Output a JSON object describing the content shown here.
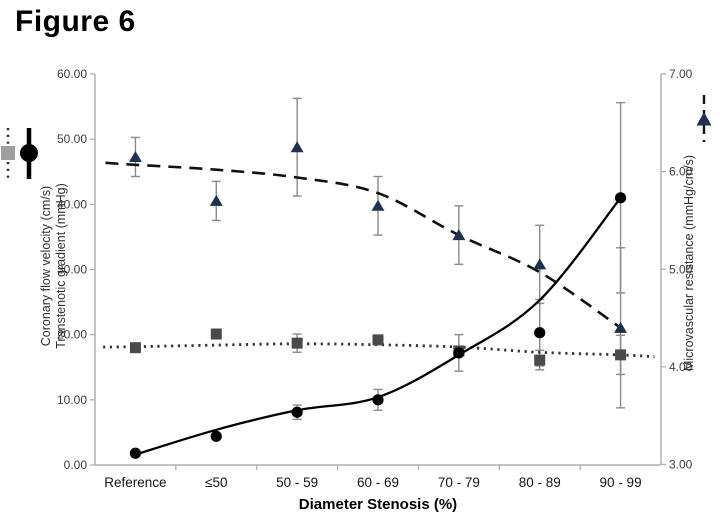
{
  "figure_title": "Figure 6",
  "chart_data": {
    "type": "line",
    "categories": [
      "Reference",
      "≤50",
      "50 - 59",
      "60 - 69",
      "70 - 79",
      "80 - 89",
      "90 - 99"
    ],
    "xlabel": "Diameter Stenosis (%)",
    "left_axis": {
      "label_line1": "Coronary flow velocity (cm/s)",
      "label_line2": "Transtenotic gradient (mmHg)",
      "min": 0,
      "max": 60,
      "tick_labels": [
        "0.00",
        "10.00",
        "20.00",
        "30.00",
        "40.00",
        "50.00",
        "60.00"
      ]
    },
    "right_axis": {
      "label": "Microvascular resistance (mmHg/cm/s)",
      "min": 3,
      "max": 7,
      "tick_labels": [
        "3.00",
        "4.00",
        "5.00",
        "6.00",
        "7.00"
      ]
    },
    "legend": "grid off; square+dotted and circle+solid symbols beside left axis label; triangle+dashed symbol beside right axis label",
    "series": [
      {
        "name": "Microvascular resistance",
        "axis": "right",
        "marker": "triangle",
        "line_style": "dashed",
        "color": "#1e3150",
        "values": [
          6.15,
          5.7,
          6.25,
          5.65,
          5.35,
          5.05,
          4.4
        ],
        "errors": [
          0.2,
          0.2,
          0.5,
          0.3,
          0.3,
          0.4,
          0.82
        ],
        "trend_x": [
          -0.37,
          0,
          1,
          2,
          3,
          4,
          5,
          6
        ],
        "trend_y": [
          6.09,
          6.07,
          6.02,
          5.94,
          5.78,
          5.35,
          4.97,
          4.4
        ]
      },
      {
        "name": "Coronary flow velocity",
        "axis": "left",
        "marker": "square",
        "line_style": "dotted",
        "color": "#4a4a4a",
        "values": [
          18.0,
          20.1,
          18.7,
          19.2,
          17.5,
          16.1,
          16.9
        ],
        "errors": [
          0,
          0,
          1.4,
          0,
          0,
          1.5,
          3
        ],
        "trend_x": [
          -0.4,
          0,
          1,
          2,
          3,
          4,
          5,
          6,
          6.42
        ],
        "trend_y": [
          18.1,
          18.15,
          18.4,
          18.6,
          18.45,
          18.1,
          17.3,
          16.9,
          16.6
        ]
      },
      {
        "name": "Transtenotic gradient",
        "axis": "left",
        "marker": "circle",
        "line_style": "solid",
        "color": "#000000",
        "values": [
          1.8,
          4.4,
          8.1,
          10.0,
          17.2,
          20.3,
          41.0
        ],
        "errors": [
          0,
          0,
          1.1,
          1.6,
          2.8,
          5.1,
          14.6
        ],
        "trend_x": [
          0,
          1,
          2,
          3,
          4,
          5,
          6
        ],
        "trend_y": [
          1.6,
          5.4,
          8.4,
          10.4,
          16.9,
          25.3,
          41.0
        ]
      }
    ],
    "colors": {
      "axis_line": "#b0b0b0",
      "tick_text": "#3c3c3c",
      "category_text": "#141414",
      "error_bar": "#8a8a8a",
      "dashed_line": "#111111",
      "dotted_line": "#333333",
      "solid_line": "#000000",
      "legend_square": "#9e9e9e",
      "triangle": "#1e3150",
      "square": "#4a4a4a",
      "circle": "#000000"
    }
  }
}
